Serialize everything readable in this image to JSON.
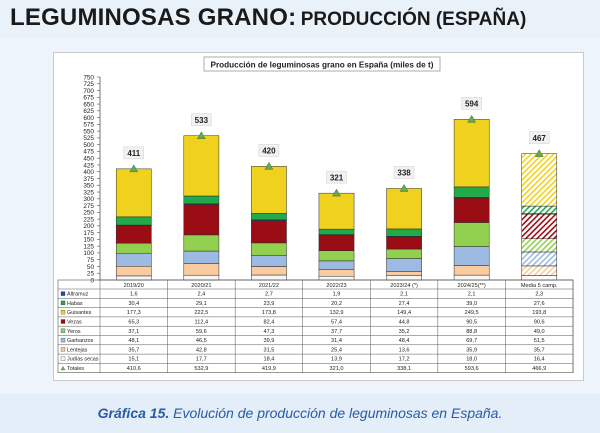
{
  "page": {
    "title_main": "LEGUMINOSAS GRANO:",
    "title_sub": "PRODUCCIÓN (ESPAÑA)",
    "caption_bold": "Gráfica 15.",
    "caption_text": "Evolución de producción de leguminosas en España."
  },
  "colors": {
    "Altramuz": "#1f4e9c",
    "Habas": "#22a94a",
    "Guisantes": "#f0d21e",
    "Vezas": "#9b0d14",
    "Yeros": "#92d050",
    "Garbanzos": "#9dbbe2",
    "Lentejas": "#f8cba0",
    "Judías secas": "#f6f6f6",
    "triangle": "#6aa84f",
    "label_box": "#f1f1f1"
  },
  "chart_data": {
    "type": "bar",
    "title": "Producción de leguminosas grano en España   (miles de t)",
    "categories": [
      "2019/20",
      "2020/21",
      "2021/22",
      "2022/23",
      "2023/24 (*)",
      "2024/25(**)",
      "Media 5 camp."
    ],
    "ylim": [
      0,
      750
    ],
    "yticks": [
      0,
      25,
      50,
      75,
      100,
      125,
      150,
      175,
      200,
      225,
      250,
      275,
      300,
      325,
      350,
      375,
      400,
      425,
      450,
      475,
      500,
      525,
      550,
      575,
      600,
      625,
      650,
      675,
      700,
      725,
      750
    ],
    "ytick_labels": [
      "0",
      "25",
      "50",
      "75",
      "100",
      "125",
      "150",
      "175",
      "200",
      "225",
      "250",
      "275",
      "300",
      "325",
      "350",
      "375",
      "400",
      "425",
      "450",
      "475",
      "500",
      "525",
      "550",
      "575",
      "600",
      "625",
      "650",
      "675",
      "700",
      "725",
      "750"
    ],
    "grid": false,
    "stacked": true,
    "series": [
      {
        "name": "Altramuz",
        "values": [
          1.6,
          2.4,
          2.7,
          1.9,
          2.1,
          2.1,
          2.3
        ],
        "labels": [
          "1,6",
          "2,4",
          "2,7",
          "1,9",
          "2,1",
          "2,1",
          "2,3"
        ]
      },
      {
        "name": "Habas",
        "values": [
          30.4,
          29.1,
          23.9,
          20.2,
          27.4,
          39.0,
          27.6
        ],
        "labels": [
          "30,4",
          "29,1",
          "23,9",
          "20,2",
          "27,4",
          "39,0",
          "27,6"
        ]
      },
      {
        "name": "Guisantes",
        "values": [
          177.3,
          222.5,
          173.8,
          132.9,
          149.4,
          249.5,
          193.8
        ],
        "labels": [
          "177,3",
          "222,5",
          "173,8",
          "132,9",
          "149,4",
          "249,5",
          "193,8"
        ]
      },
      {
        "name": "Vezas",
        "values": [
          65.3,
          112.4,
          82.4,
          57.4,
          44.8,
          90.5,
          90.6
        ],
        "labels": [
          "65,3",
          "112,4",
          "82,4",
          "57,4",
          "44,8",
          "90,5",
          "90,6"
        ]
      },
      {
        "name": "Yeros",
        "values": [
          37.1,
          59.6,
          47.3,
          37.7,
          35.2,
          88.8,
          49.0
        ],
        "labels": [
          "37,1",
          "59,6",
          "47,3",
          "37,7",
          "35,2",
          "88,8",
          "49,0"
        ]
      },
      {
        "name": "Garbanzos",
        "values": [
          48.1,
          46.5,
          39.9,
          31.4,
          48.4,
          69.7,
          51.5
        ],
        "labels": [
          "48,1",
          "46,5",
          "39,9",
          "31,4",
          "48,4",
          "69,7",
          "51,5"
        ]
      },
      {
        "name": "Lentejas",
        "values": [
          35.7,
          42.8,
          31.5,
          25.4,
          13.6,
          35.9,
          35.7
        ],
        "labels": [
          "35,7",
          "42,8",
          "31,5",
          "25,4",
          "13,6",
          "35,9",
          "35,7"
        ]
      },
      {
        "name": "Judías secas",
        "values": [
          15.1,
          17.7,
          18.4,
          13.9,
          17.2,
          18.0,
          16.4
        ],
        "labels": [
          "15,1",
          "17,7",
          "18,4",
          "13,9",
          "17,2",
          "18,0",
          "16,4"
        ]
      }
    ],
    "stack_order_bottom_to_top": [
      "Judías secas",
      "Lentejas",
      "Garbanzos",
      "Yeros",
      "Vezas",
      "Altramuz",
      "Habas",
      "Guisantes"
    ],
    "totals": {
      "name": "Totales",
      "values": [
        410.6,
        532.9,
        419.9,
        321.0,
        338.1,
        593.6,
        466.9
      ],
      "labels": [
        "410,6",
        "532,9",
        "419,9",
        "321,0",
        "338,1",
        "593,6",
        "466,9"
      ],
      "bar_labels": [
        "411",
        "533",
        "420",
        "321",
        "338",
        "594",
        "467"
      ]
    },
    "hatched_last_category": true,
    "legend": "table-below"
  }
}
